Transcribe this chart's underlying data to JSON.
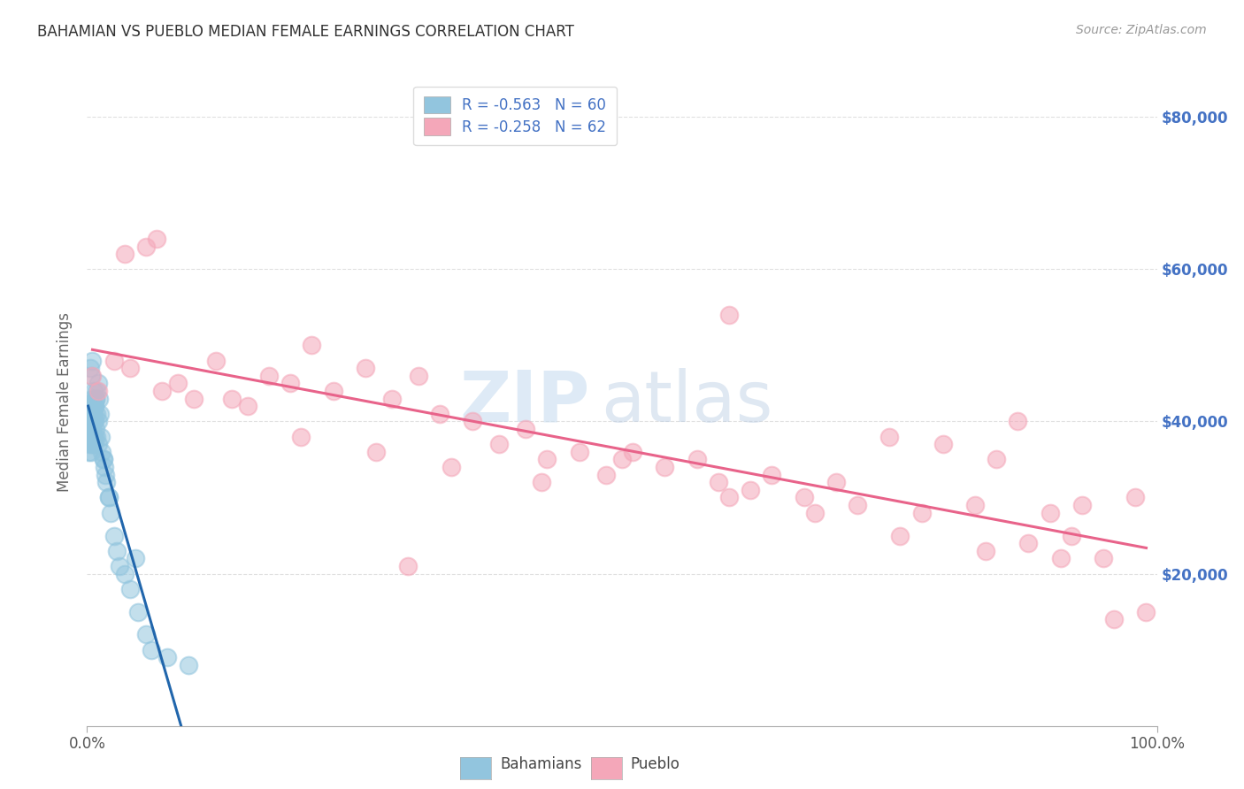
{
  "title": "BAHAMIAN VS PUEBLO MEDIAN FEMALE EARNINGS CORRELATION CHART",
  "source": "Source: ZipAtlas.com",
  "ylabel": "Median Female Earnings",
  "ytick_labels": [
    "$20,000",
    "$40,000",
    "$60,000",
    "$80,000"
  ],
  "ytick_values": [
    20000,
    40000,
    60000,
    80000
  ],
  "xmin": 0.0,
  "xmax": 100.0,
  "ymin": 0,
  "ymax": 85000,
  "legend_r_bahamian": "R = -0.563   N = 60",
  "legend_r_pueblo": "R = -0.258   N = 62",
  "legend_label_bahamians": "Bahamians",
  "legend_label_pueblo": "Pueblo",
  "watermark_zip": "ZIP",
  "watermark_atlas": "atlas",
  "bahamian_scatter_color": "#92c5de",
  "pueblo_scatter_color": "#f4a7b9",
  "bahamian_line_color": "#2166ac",
  "pueblo_line_color": "#e8638a",
  "right_ytick_color": "#4472c4",
  "background_color": "#ffffff",
  "grid_color": "#cccccc",
  "title_color": "#333333",
  "axis_label_color": "#666666",
  "bahamians_x": [
    0.1,
    0.15,
    0.2,
    0.2,
    0.25,
    0.3,
    0.3,
    0.35,
    0.35,
    0.4,
    0.4,
    0.45,
    0.45,
    0.5,
    0.5,
    0.55,
    0.55,
    0.6,
    0.6,
    0.65,
    0.7,
    0.7,
    0.75,
    0.8,
    0.8,
    0.85,
    0.9,
    0.9,
    1.0,
    1.0,
    1.1,
    1.2,
    1.3,
    1.4,
    1.5,
    1.6,
    1.7,
    1.8,
    2.0,
    2.2,
    2.5,
    2.8,
    3.0,
    3.5,
    4.0,
    4.8,
    5.5,
    6.0,
    7.5,
    0.3,
    0.4,
    0.6,
    0.7,
    0.5,
    0.8,
    1.0,
    1.5,
    2.0,
    4.5,
    9.5
  ],
  "bahamians_y": [
    36000,
    38000,
    40000,
    37000,
    39000,
    41000,
    38000,
    40000,
    36000,
    42000,
    38000,
    41000,
    37000,
    43000,
    39000,
    42000,
    38000,
    41000,
    37000,
    40000,
    42000,
    38000,
    40000,
    43000,
    39000,
    41000,
    44000,
    38000,
    45000,
    37000,
    43000,
    41000,
    38000,
    36000,
    35000,
    34000,
    33000,
    32000,
    30000,
    28000,
    25000,
    23000,
    21000,
    20000,
    18000,
    15000,
    12000,
    10000,
    9000,
    47000,
    46000,
    44000,
    42000,
    48000,
    43000,
    40000,
    35000,
    30000,
    22000,
    8000
  ],
  "pueblo_x": [
    0.5,
    1.0,
    2.5,
    4.0,
    5.5,
    7.0,
    8.5,
    10.0,
    12.0,
    15.0,
    17.0,
    19.0,
    21.0,
    23.0,
    26.0,
    28.5,
    31.0,
    33.0,
    36.0,
    38.5,
    41.0,
    43.0,
    46.0,
    48.5,
    51.0,
    54.0,
    57.0,
    59.0,
    62.0,
    64.0,
    67.0,
    70.0,
    72.0,
    75.0,
    78.0,
    80.0,
    83.0,
    85.0,
    88.0,
    90.0,
    93.0,
    95.0,
    98.0,
    3.5,
    6.5,
    13.5,
    20.0,
    27.0,
    34.0,
    42.5,
    50.0,
    60.0,
    68.0,
    76.0,
    84.0,
    91.0,
    96.0,
    30.0,
    60.0,
    87.0,
    92.0,
    99.0
  ],
  "pueblo_y": [
    46000,
    44000,
    48000,
    47000,
    63000,
    44000,
    45000,
    43000,
    48000,
    42000,
    46000,
    45000,
    50000,
    44000,
    47000,
    43000,
    46000,
    41000,
    40000,
    37000,
    39000,
    35000,
    36000,
    33000,
    36000,
    34000,
    35000,
    32000,
    31000,
    33000,
    30000,
    32000,
    29000,
    38000,
    28000,
    37000,
    29000,
    35000,
    24000,
    28000,
    29000,
    22000,
    30000,
    62000,
    64000,
    43000,
    38000,
    36000,
    34000,
    32000,
    35000,
    30000,
    28000,
    25000,
    23000,
    22000,
    14000,
    21000,
    54000,
    40000,
    25000,
    15000
  ]
}
